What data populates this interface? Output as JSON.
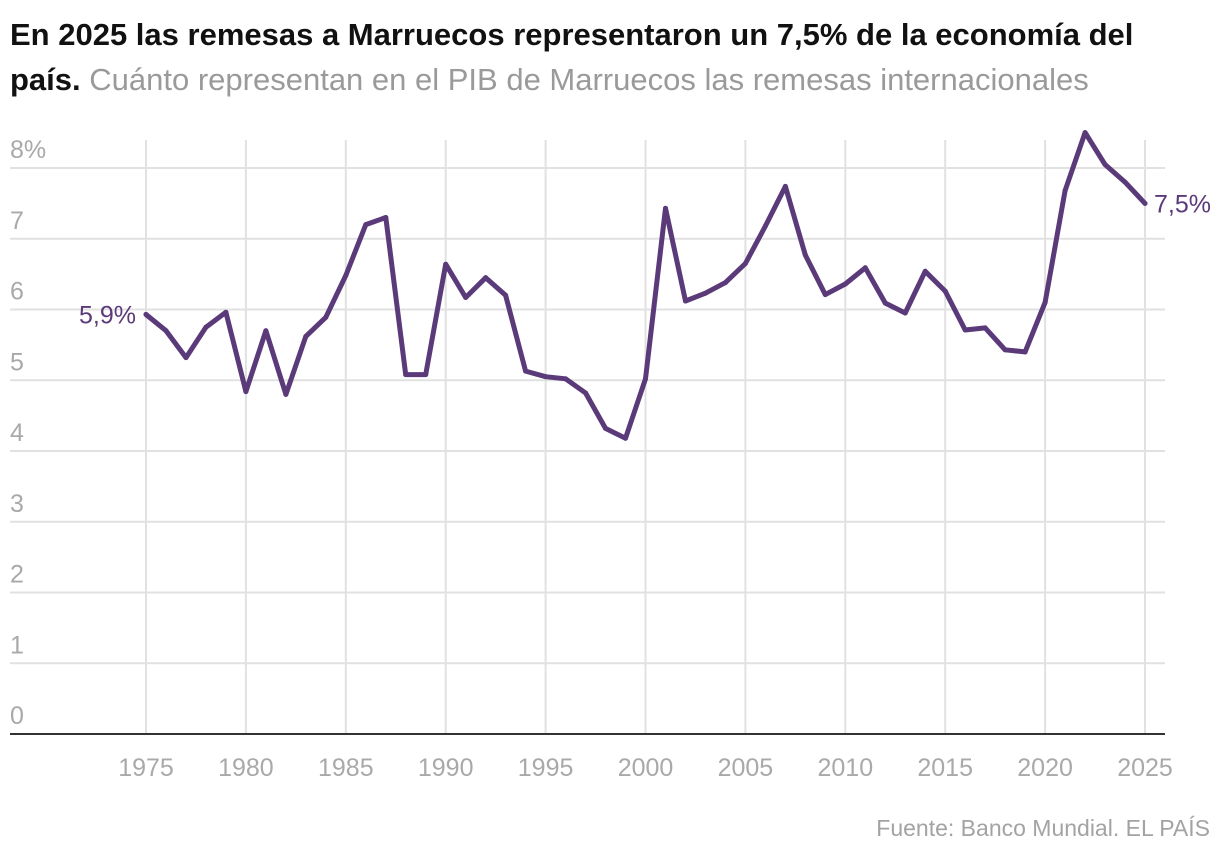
{
  "header": {
    "title": "En 2025 las remesas a Marruecos representaron un 7,5% de la economía del país",
    "title_end": ".",
    "subtitle": "Cuánto representan en el PIB de Marruecos las remesas internacionales"
  },
  "source": "Fuente: Banco Mundial. EL PAÍS",
  "colors": {
    "line": "#5b3a7a",
    "grid": "#e1e1e1",
    "axis": "#333333",
    "ticks": "#a9a9a9"
  },
  "chart_data": {
    "type": "line",
    "title": "En 2025 las remesas a Marruecos representaron un 7,5% de la economía del país",
    "subtitle": "Cuánto representan en el PIB de Marruecos las remesas internacionales",
    "xlabel": "",
    "ylabel": "",
    "xlim": [
      1975,
      2025
    ],
    "ylim": [
      0,
      8
    ],
    "grid": true,
    "x_ticks": [
      1975,
      1980,
      1985,
      1990,
      1995,
      2000,
      2005,
      2010,
      2015,
      2020,
      2025
    ],
    "x_tick_labels": [
      "1975",
      "1980",
      "1985",
      "1990",
      "1995",
      "2000",
      "2005",
      "2010",
      "2015",
      "2020",
      "2025"
    ],
    "y_ticks": [
      0,
      1,
      2,
      3,
      4,
      5,
      6,
      7,
      8
    ],
    "y_tick_labels": [
      "0",
      "1",
      "2",
      "3",
      "4",
      "5",
      "6",
      "7",
      "8%"
    ],
    "start_label": "5,9%",
    "end_label": "7,5%",
    "series": [
      {
        "x": [
          1975,
          1976,
          1977,
          1978,
          1979,
          1980,
          1981,
          1982,
          1983,
          1984,
          1985,
          1986,
          1987,
          1988,
          1989,
          1990,
          1991,
          1992,
          1993,
          1994,
          1995,
          1996,
          1997,
          1998,
          1999,
          2000,
          2001,
          2002,
          2003,
          2004,
          2005,
          2006,
          2007,
          2008,
          2009,
          2010,
          2011,
          2012,
          2013,
          2014,
          2015,
          2016,
          2017,
          2018,
          2019,
          2020,
          2021,
          2022,
          2023,
          2024,
          2025
        ],
        "values": [
          5.93,
          5.7,
          5.32,
          5.75,
          5.96,
          4.84,
          5.7,
          4.8,
          5.62,
          5.89,
          6.48,
          7.2,
          7.3,
          5.08,
          5.08,
          6.64,
          6.17,
          6.45,
          6.2,
          5.13,
          5.05,
          5.02,
          4.82,
          4.32,
          4.18,
          5.02,
          7.43,
          6.12,
          6.23,
          6.38,
          6.65,
          7.18,
          7.74,
          6.77,
          6.21,
          6.36,
          6.59,
          6.09,
          5.95,
          6.54,
          6.26,
          5.71,
          5.74,
          5.43,
          5.4,
          6.1,
          7.68,
          8.5,
          8.05,
          7.8,
          7.5
        ]
      }
    ]
  }
}
